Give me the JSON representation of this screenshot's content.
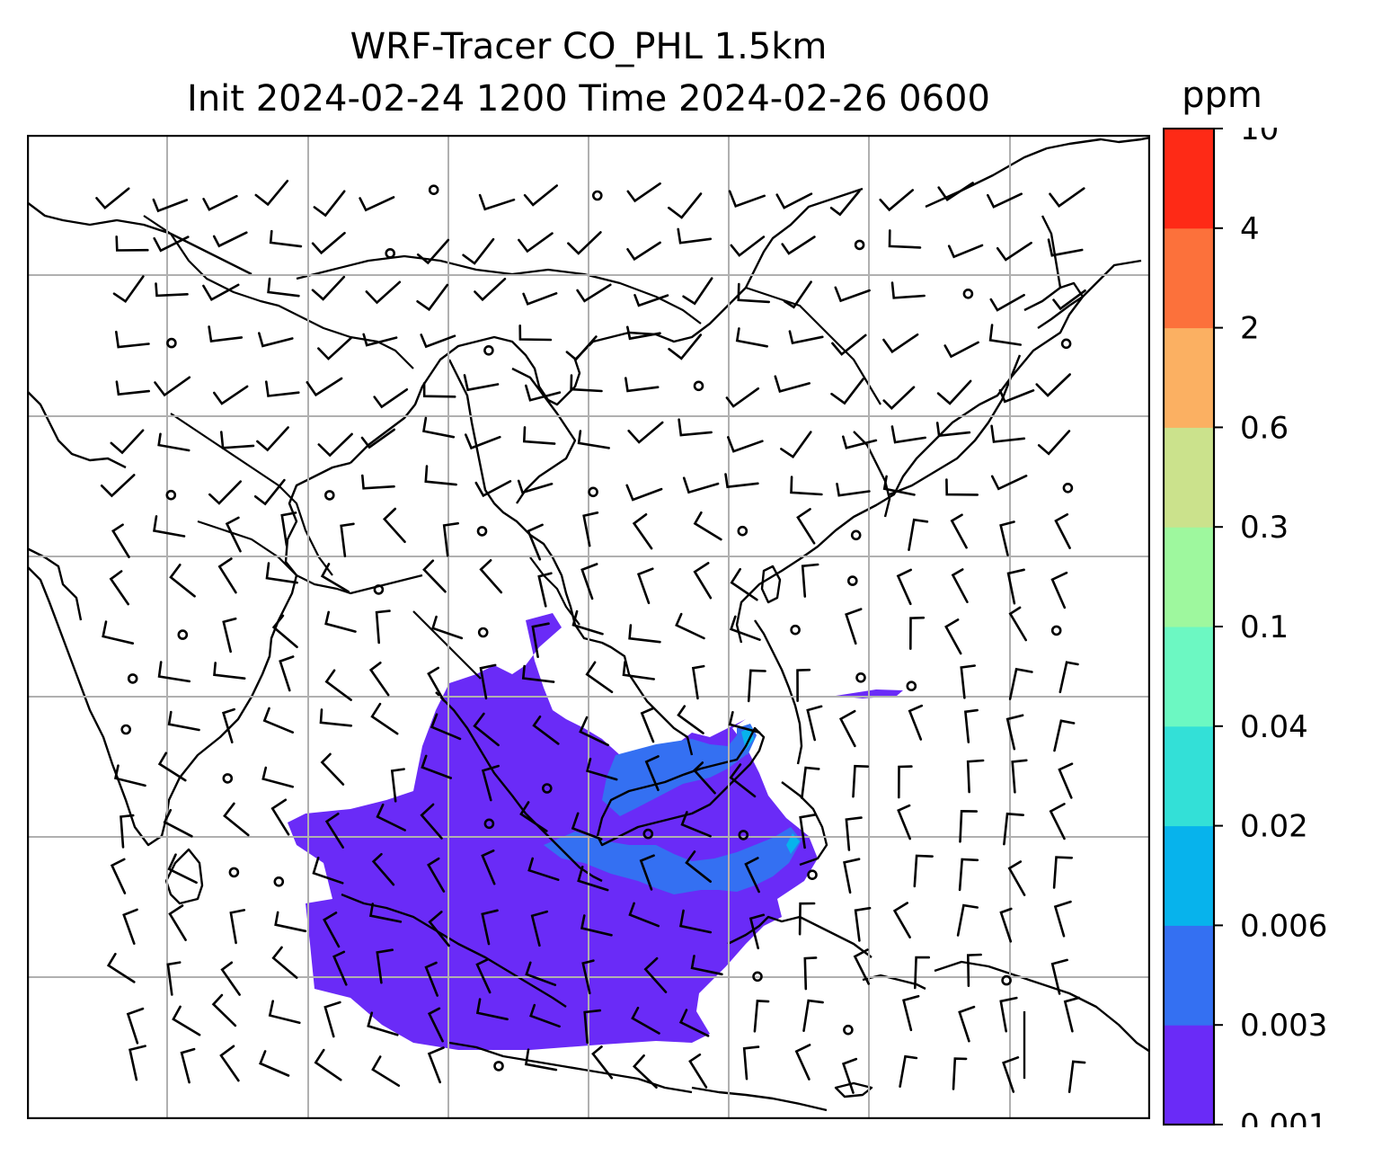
{
  "title": {
    "line1": "WRF-Tracer CO_PHL 1.5km",
    "line2": "Init 2024-02-24 1200 Time 2024-02-26 0600"
  },
  "colorbar": {
    "unit": "ppm",
    "levels": [
      "0.001",
      "0.003",
      "0.006",
      "0.02",
      "0.04",
      "0.1",
      "0.3",
      "0.6",
      "2",
      "4",
      "10"
    ],
    "colors": [
      "#6a2bf7",
      "#3470f2",
      "#07b3ec",
      "#33e0d7",
      "#6cf8c2",
      "#9ef89e",
      "#cbe28c",
      "#fbb062",
      "#fc713b",
      "#fe2a16"
    ]
  },
  "map": {
    "land_outline": "#000000",
    "grid_color": "#b0b0b0",
    "wind_barb_color": "#000000"
  }
}
